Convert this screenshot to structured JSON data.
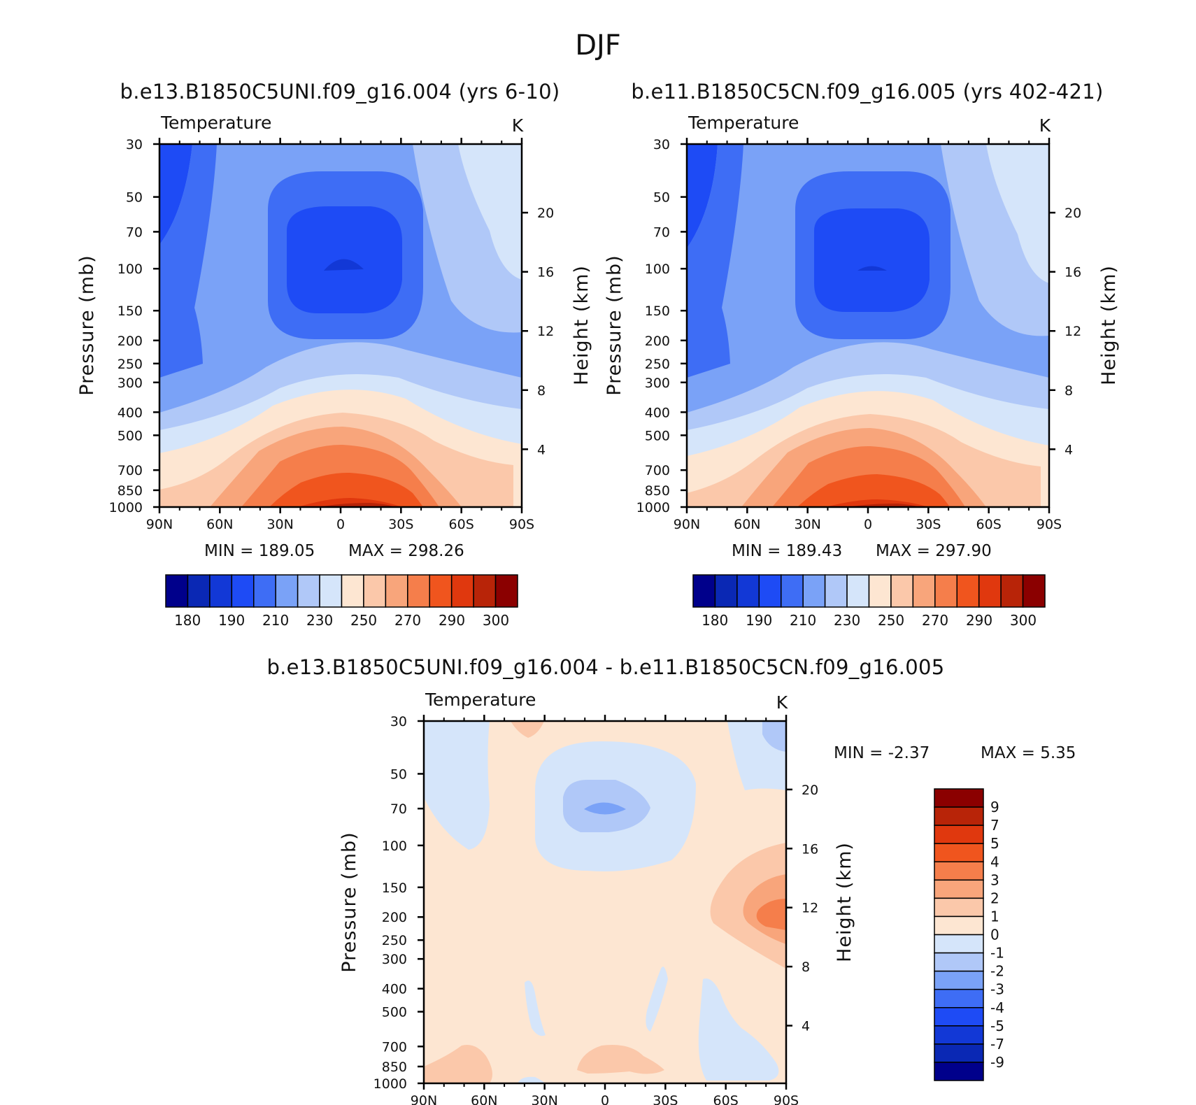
{
  "title": "DJF",
  "chart_data": [
    {
      "type": "heatmap",
      "subtitle": "b.e13.B1850C5UNI.f09_g16.004 (yrs 6-10)",
      "variable": "Temperature",
      "units": "K",
      "ylabel": "Pressure (mb)",
      "ylabel_right": "Height (km)",
      "x_ticks": [
        "90N",
        "60N",
        "30N",
        "0",
        "30S",
        "60S",
        "90S"
      ],
      "y_ticks": [
        "30",
        "50",
        "70",
        "100",
        "150",
        "200",
        "250",
        "300",
        "400",
        "500",
        "700",
        "850",
        "1000"
      ],
      "y_right_ticks": [
        "20",
        "16",
        "12",
        "8",
        "4"
      ],
      "min_label": "MIN = 189.05",
      "max_label": "MAX = 298.26",
      "colorbar": {
        "levels": [
          "180",
          "190",
          "210",
          "230",
          "250",
          "270",
          "290",
          "300"
        ],
        "colors": [
          "#00008b",
          "#0a28b4",
          "#1238d6",
          "#1e4bf5",
          "#3e6df5",
          "#7aa2f7",
          "#b0c8f8",
          "#d5e5fa",
          "#fde6d2",
          "#fbc8aa",
          "#f8a57b",
          "#f57e4b",
          "#f0551e",
          "#e0380e",
          "#b82408",
          "#8b0000"
        ]
      }
    },
    {
      "type": "heatmap",
      "subtitle": "b.e11.B1850C5CN.f09_g16.005 (yrs 402-421)",
      "variable": "Temperature",
      "units": "K",
      "ylabel": "Pressure (mb)",
      "ylabel_right": "Height (km)",
      "x_ticks": [
        "90N",
        "60N",
        "30N",
        "0",
        "30S",
        "60S",
        "90S"
      ],
      "y_ticks": [
        "30",
        "50",
        "70",
        "100",
        "150",
        "200",
        "250",
        "300",
        "400",
        "500",
        "700",
        "850",
        "1000"
      ],
      "y_right_ticks": [
        "20",
        "16",
        "12",
        "8",
        "4"
      ],
      "min_label": "MIN = 189.43",
      "max_label": "MAX = 297.90",
      "colorbar": {
        "levels": [
          "180",
          "190",
          "210",
          "230",
          "250",
          "270",
          "290",
          "300"
        ],
        "colors": [
          "#00008b",
          "#0a28b4",
          "#1238d6",
          "#1e4bf5",
          "#3e6df5",
          "#7aa2f7",
          "#b0c8f8",
          "#d5e5fa",
          "#fde6d2",
          "#fbc8aa",
          "#f8a57b",
          "#f57e4b",
          "#f0551e",
          "#e0380e",
          "#b82408",
          "#8b0000"
        ]
      }
    },
    {
      "type": "heatmap",
      "subtitle": "b.e13.B1850C5UNI.f09_g16.004 - b.e11.B1850C5CN.f09_g16.005",
      "variable": "Temperature",
      "units": "K",
      "ylabel": "Pressure (mb)",
      "ylabel_right": "Height (km)",
      "x_ticks": [
        "90N",
        "60N",
        "30N",
        "0",
        "30S",
        "60S",
        "90S"
      ],
      "y_ticks": [
        "30",
        "50",
        "70",
        "100",
        "150",
        "200",
        "250",
        "300",
        "400",
        "500",
        "700",
        "850",
        "1000"
      ],
      "y_right_ticks": [
        "20",
        "16",
        "12",
        "8",
        "4"
      ],
      "min_label": "MIN = -2.37",
      "max_label": "MAX = 5.35",
      "colorbar": {
        "levels": [
          "9",
          "7",
          "5",
          "4",
          "3",
          "2",
          "1",
          "0",
          "-1",
          "-2",
          "-3",
          "-4",
          "-5",
          "-7",
          "-9"
        ],
        "colors": [
          "#8b0000",
          "#b82408",
          "#e0380e",
          "#f0551e",
          "#f57e4b",
          "#f8a57b",
          "#fbc8aa",
          "#fde6d2",
          "#d5e5fa",
          "#b0c8f8",
          "#7aa2f7",
          "#3e6df5",
          "#1e4bf5",
          "#1238d6",
          "#0a28b4",
          "#00008b"
        ]
      }
    }
  ]
}
